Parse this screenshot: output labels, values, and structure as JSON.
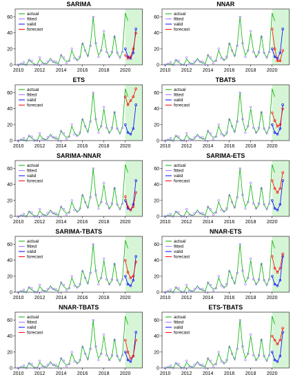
{
  "chart_data": {
    "type": "line",
    "layout": "5 rows x 2 columns of small multiples",
    "shared_x": [
      2010,
      2010.25,
      2010.5,
      2010.75,
      2011,
      2011.25,
      2011.5,
      2011.75,
      2012,
      2012.25,
      2012.5,
      2012.75,
      2013,
      2013.25,
      2013.5,
      2013.75,
      2014,
      2014.25,
      2014.5,
      2014.75,
      2015,
      2015.25,
      2015.5,
      2015.75,
      2016,
      2016.25,
      2016.5,
      2016.75,
      2017,
      2017.25,
      2017.5,
      2017.75,
      2018,
      2018.25,
      2018.5,
      2018.75,
      2019,
      2019.25,
      2019.5,
      2019.75,
      2020,
      2020.25,
      2020.5,
      2020.75,
      2021
    ],
    "actual": [
      0,
      1,
      1,
      0,
      6,
      3,
      1,
      0,
      7,
      3,
      1,
      2,
      8,
      4,
      2,
      2,
      12,
      7,
      4,
      5,
      18,
      10,
      6,
      8,
      28,
      18,
      10,
      26,
      60,
      25,
      12,
      18,
      40,
      18,
      10,
      14,
      37,
      15,
      8,
      18,
      65,
      55,
      0,
      0,
      0
    ],
    "forecast_x": [
      2020.0,
      2020.25,
      2020.5,
      2020.75,
      2021.0
    ],
    "valid": [
      20,
      10,
      8,
      15,
      45
    ],
    "xticks": [
      2010,
      2012,
      2014,
      2016,
      2018,
      2020
    ],
    "yticks": [
      0,
      20,
      40,
      60
    ],
    "ylim": [
      0,
      70
    ],
    "xlim": [
      2009.7,
      2021.6
    ],
    "shaded_region": [
      2020.0,
      2021.6
    ],
    "legend_placement": "top-left",
    "legend": [
      "actual",
      "fitted",
      "valid",
      "forecast"
    ],
    "series_colors": {
      "actual": "#00b000",
      "fitted": "#a070ff",
      "valid": "#0000ff",
      "forecast": "#ff0000"
    },
    "panels": [
      {
        "title": "SARIMA",
        "forecast": [
          12,
          8,
          10,
          20,
          40
        ]
      },
      {
        "title": "NNAR",
        "forecast": [
          45,
          20,
          5,
          5,
          18
        ]
      },
      {
        "title": "ETS",
        "forecast": [
          55,
          45,
          50,
          55,
          65
        ]
      },
      {
        "title": "TBATS",
        "forecast": [
          35,
          25,
          18,
          20,
          40
        ]
      },
      {
        "title": "SARIMA-NNAR",
        "forecast": [
          25,
          12,
          8,
          12,
          30
        ]
      },
      {
        "title": "SARIMA-ETS",
        "forecast": [
          45,
          35,
          30,
          35,
          55
        ]
      },
      {
        "title": "SARIMA-TBATS",
        "forecast": [
          40,
          25,
          18,
          20,
          38
        ]
      },
      {
        "title": "NNAR-ETS",
        "forecast": [
          45,
          30,
          25,
          30,
          48
        ]
      },
      {
        "title": "NNAR-TBATS",
        "forecast": [
          35,
          20,
          12,
          15,
          35
        ]
      },
      {
        "title": "ETS-TBATS",
        "forecast": [
          40,
          35,
          30,
          35,
          50
        ]
      }
    ]
  }
}
